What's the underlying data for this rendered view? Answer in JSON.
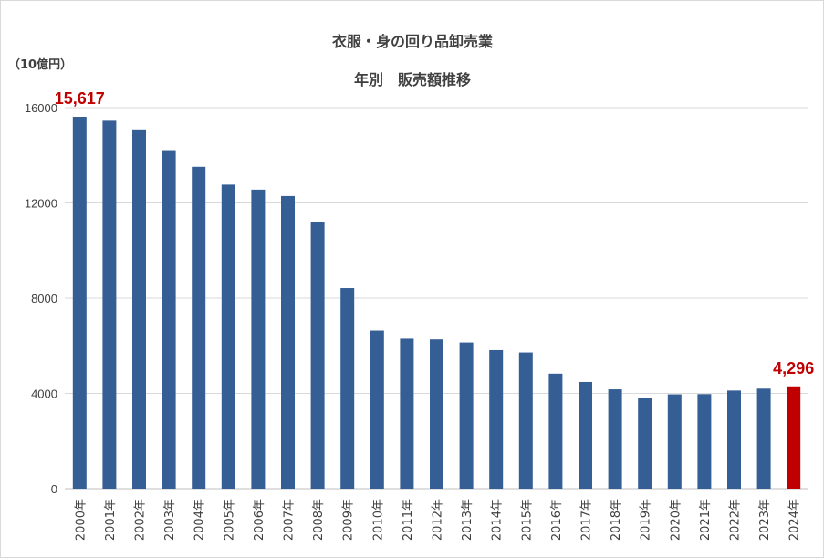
{
  "colors": {
    "bar": "#355f94",
    "highlight": "#c00000",
    "grid": "#d9d9d9",
    "text": "#404040"
  },
  "chart_data": {
    "type": "bar",
    "title_line1": "衣服・身の回り品卸売業",
    "title_line2": "年別　販売額推移",
    "unit_label": "（10億円）",
    "ylim": [
      0,
      16000
    ],
    "yticks": [
      "0",
      "4000",
      "8000",
      "12000",
      "16000"
    ],
    "grid": true,
    "legend": "none",
    "categories": [
      "2000年",
      "2001年",
      "2002年",
      "2003年",
      "2004年",
      "2005年",
      "2006年",
      "2007年",
      "2008年",
      "2009年",
      "2010年",
      "2011年",
      "2012年",
      "2013年",
      "2014年",
      "2015年",
      "2016年",
      "2017年",
      "2018年",
      "2019年",
      "2020年",
      "2021年",
      "2022年",
      "2023年",
      "2024年"
    ],
    "values": [
      15617,
      15450,
      15050,
      14180,
      13520,
      12770,
      12560,
      12290,
      11200,
      8420,
      6640,
      6300,
      6270,
      6140,
      5820,
      5720,
      4830,
      4480,
      4170,
      3800,
      3960,
      3970,
      4120,
      4200,
      4296
    ],
    "highlight_index": 24,
    "data_labels": [
      {
        "index": 0,
        "text": "15,617"
      },
      {
        "index": 24,
        "text": "4,296"
      }
    ]
  }
}
